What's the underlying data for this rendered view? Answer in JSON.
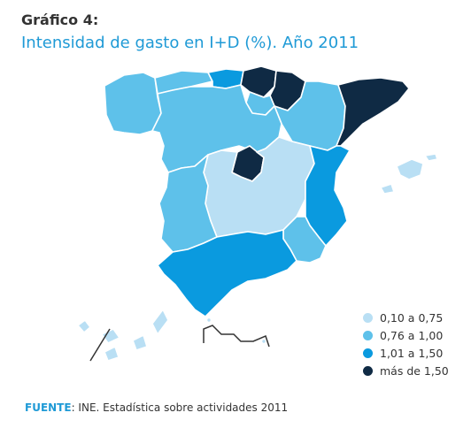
{
  "header": {
    "label": "Gráfico 4:",
    "title": "Intensidad de gasto en I+D (%). Año 2011"
  },
  "legend": [
    {
      "label": "0,10 a 0,75",
      "color": "#b9dff4"
    },
    {
      "label": "0,76 a 1,00",
      "color": "#5ec1ea"
    },
    {
      "label": "1,01 a 1,50",
      "color": "#0a9adf"
    },
    {
      "label": "más de 1,50",
      "color": "#0f2a44"
    }
  ],
  "source": {
    "prefix": "FUENTE",
    "text": ": INE. Estadística sobre actividades 2011"
  },
  "regions": [
    {
      "name": "Galicia",
      "class": "0,76 a 1,00"
    },
    {
      "name": "Asturias",
      "class": "0,76 a 1,00"
    },
    {
      "name": "Cantabria",
      "class": "1,01 a 1,50"
    },
    {
      "name": "País Vasco",
      "class": "más de 1,50"
    },
    {
      "name": "Navarra",
      "class": "más de 1,50"
    },
    {
      "name": "La Rioja",
      "class": "0,76 a 1,00"
    },
    {
      "name": "Aragón",
      "class": "0,76 a 1,00"
    },
    {
      "name": "Cataluña",
      "class": "más de 1,50"
    },
    {
      "name": "Castilla y León",
      "class": "0,76 a 1,00"
    },
    {
      "name": "Madrid",
      "class": "más de 1,50"
    },
    {
      "name": "Castilla-La Mancha",
      "class": "0,10 a 0,75"
    },
    {
      "name": "Extremadura",
      "class": "0,76 a 1,00"
    },
    {
      "name": "Comunitat Valenciana",
      "class": "1,01 a 1,50"
    },
    {
      "name": "Región de Murcia",
      "class": "0,76 a 1,00"
    },
    {
      "name": "Andalucía",
      "class": "1,01 a 1,50"
    },
    {
      "name": "Illes Balears",
      "class": "0,10 a 0,75"
    },
    {
      "name": "Canarias",
      "class": "0,10 a 0,75"
    },
    {
      "name": "Ceuta",
      "class": "0,10 a 0,75"
    },
    {
      "name": "Melilla",
      "class": "0,10 a 0,75"
    }
  ]
}
